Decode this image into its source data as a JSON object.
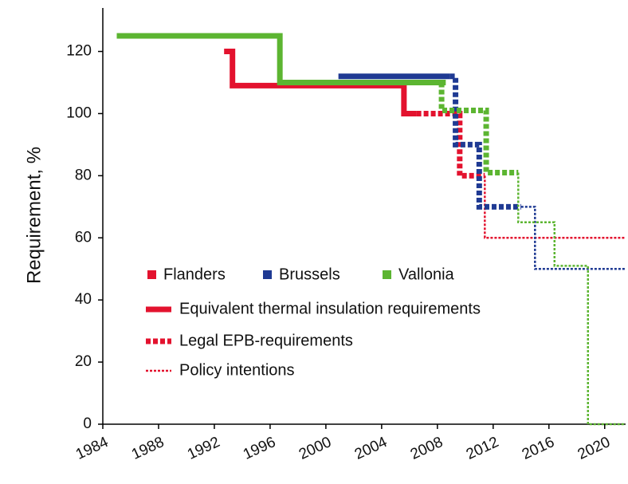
{
  "chart_data": {
    "type": "step-line",
    "y_label": "Requirement, %",
    "xlim": [
      1984,
      2021.5
    ],
    "xticks": [
      1984,
      1988,
      1992,
      1996,
      2000,
      2004,
      2008,
      2012,
      2016,
      2020
    ],
    "ylim": [
      0,
      134
    ],
    "yticks": [
      0,
      20,
      40,
      60,
      80,
      100,
      120
    ],
    "line_styles": [
      {
        "label": "Equivalent thermal insulation requirements",
        "dash": "solid"
      },
      {
        "label": "Legal EPB-requirements",
        "dash": "dashed"
      },
      {
        "label": "Policy intentions",
        "dash": "dotted"
      }
    ],
    "series": [
      {
        "name": "Flanders",
        "color": "#e3122e",
        "lines": [
          {
            "dash": "solid",
            "x": [
              1992.7,
              1993.3,
              1993.3,
              2005.6,
              2005.6,
              2006.5
            ],
            "values": [
              120,
              120,
              109,
              109,
              100,
              100
            ]
          },
          {
            "dash": "dashed",
            "x": [
              2006.5,
              2009.6,
              2009.6,
              2011.4
            ],
            "values": [
              100,
              100,
              80,
              80
            ]
          },
          {
            "dash": "dotted",
            "x": [
              2011.4,
              2011.4,
              2021.5
            ],
            "values": [
              80,
              60,
              60
            ]
          }
        ]
      },
      {
        "name": "Brussels",
        "color": "#1f3a93",
        "lines": [
          {
            "dash": "solid",
            "x": [
              2000.9,
              2008.9
            ],
            "values": [
              112,
              112
            ]
          },
          {
            "dash": "dashed",
            "x": [
              2008.9,
              2009.3,
              2009.3,
              2011,
              2011,
              2014
            ],
            "values": [
              112,
              112,
              90,
              90,
              70,
              70
            ]
          },
          {
            "dash": "dotted",
            "x": [
              2014,
              2015,
              2015,
              2021.5
            ],
            "values": [
              70,
              70,
              50,
              50
            ]
          }
        ]
      },
      {
        "name": "Vallonia",
        "color": "#5cb531",
        "lines": [
          {
            "dash": "solid",
            "x": [
              1985,
              1996.7,
              1996.7,
              2008.6
            ],
            "values": [
              125,
              125,
              110,
              110
            ]
          },
          {
            "dash": "dashed",
            "x": [
              2008.3,
              2008.3,
              2011.5,
              2011.5,
              2013.8
            ],
            "values": [
              110,
              101,
              101,
              81,
              81
            ]
          },
          {
            "dash": "dotted",
            "x": [
              2013.8,
              2013.8,
              2016.4,
              2016.4,
              2018.8,
              2018.8,
              2021.5
            ],
            "values": [
              81,
              65,
              65,
              51,
              51,
              0,
              0
            ]
          }
        ]
      }
    ]
  }
}
